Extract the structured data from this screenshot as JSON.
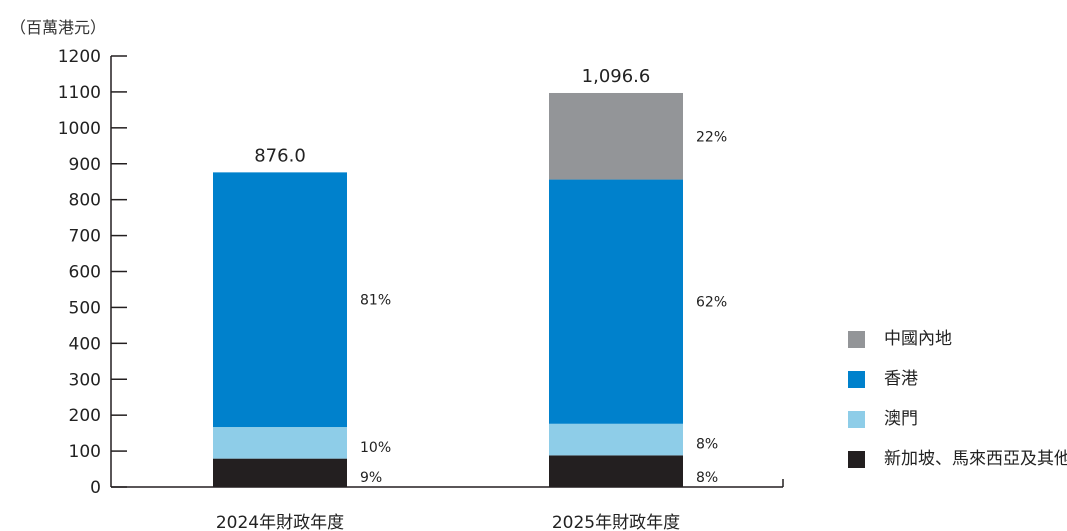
{
  "unit_label": "（百萬港元）",
  "chart_data": {
    "type": "bar",
    "stacked": true,
    "title": "",
    "xlabel": "",
    "ylabel": "（百萬港元）",
    "ylim": [
      0,
      1200
    ],
    "yticks": [
      0,
      100,
      200,
      300,
      400,
      500,
      600,
      700,
      800,
      900,
      1000,
      1100,
      1200
    ],
    "categories": [
      "2024年財政年度",
      "2025年財政年度"
    ],
    "totals": [
      "876.0",
      "1,096.6"
    ],
    "series": [
      {
        "name": "新加坡、馬來西亞及其他",
        "color": "#231f20",
        "values": [
          79,
          88
        ],
        "labels": [
          "9%",
          "8%"
        ]
      },
      {
        "name": "澳門",
        "color": "#8ecde8",
        "values": [
          88,
          88
        ],
        "labels": [
          "10%",
          "8%"
        ]
      },
      {
        "name": "香港",
        "color": "#0081cc",
        "values": [
          709,
          680
        ],
        "labels": [
          "81%",
          "62%"
        ]
      },
      {
        "name": "中國內地",
        "color": "#939598",
        "values": [
          0,
          241
        ],
        "labels": [
          "",
          "22%"
        ]
      }
    ],
    "legend": {
      "position": "right",
      "order": [
        "中國內地",
        "香港",
        "澳門",
        "新加坡、馬來西亞及其他"
      ]
    }
  },
  "legend_items": [
    {
      "label": "中國內地",
      "color": "#939598"
    },
    {
      "label": "香港",
      "color": "#0081cc"
    },
    {
      "label": "澳門",
      "color": "#8ecde8"
    },
    {
      "label": "新加坡、馬來西亞及其他",
      "color": "#231f20"
    }
  ]
}
